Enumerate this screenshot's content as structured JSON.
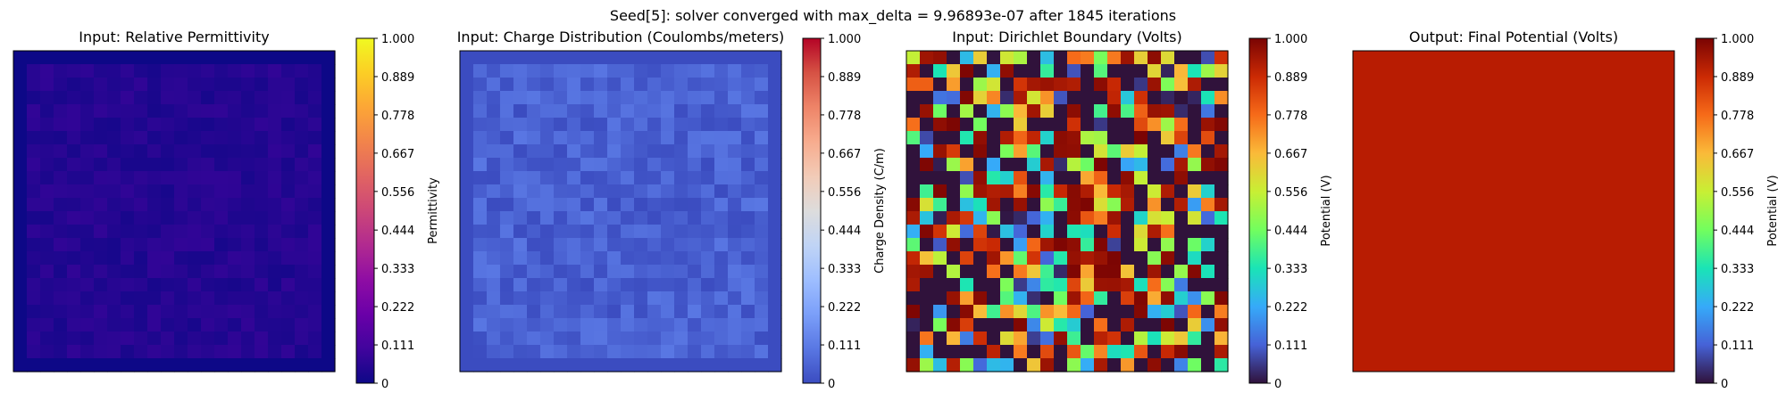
{
  "figure": {
    "suptitle": "Seed[5]: solver converged with max_delta = 9.96893e-07 after 1845 iterations"
  },
  "chart_data": [
    {
      "type": "heatmap",
      "title": "Input: Relative Permittivity",
      "colormap": "plasma",
      "grid": "24x24 cells, uniform border of value 0.0",
      "value_range_shown": [
        0.02,
        0.07
      ],
      "colorbar": {
        "label": "Permittivity",
        "ticks": [
          "0",
          "0.111",
          "0.222",
          "0.333",
          "0.444",
          "0.556",
          "0.667",
          "0.778",
          "0.889",
          "1.000"
        ],
        "range": [
          0,
          1
        ]
      }
    },
    {
      "type": "heatmap",
      "title": "Input: Charge Distribution (Coulombs/meters)",
      "colormap": "coolwarm",
      "grid": "24x24 cells, uniform border of value 0.0",
      "value_range_shown": [
        0.0,
        0.1
      ],
      "colorbar": {
        "label": "Charge Density (C/m)",
        "ticks": [
          "0",
          "0.111",
          "0.222",
          "0.333",
          "0.444",
          "0.556",
          "0.667",
          "0.778",
          "0.889",
          "1.000"
        ],
        "range": [
          0,
          1
        ]
      }
    },
    {
      "type": "heatmap",
      "title": "Input: Dirichlet Boundary (Volts)",
      "colormap": "turbo",
      "grid": "24x24 cells, random values 0 to 1",
      "value_range_shown": [
        0,
        1
      ],
      "colorbar": {
        "label": "Potential (V)",
        "ticks": [
          "0",
          "0.111",
          "0.222",
          "0.333",
          "0.444",
          "0.556",
          "0.667",
          "0.778",
          "0.889",
          "1.000"
        ],
        "range": [
          0,
          1
        ]
      }
    },
    {
      "type": "heatmap",
      "title": "Output: Final Potential (Volts)",
      "colormap": "turbo",
      "grid": "uniform field",
      "uniform_value": 0.92,
      "colorbar": {
        "label": "Potential (V)",
        "ticks": [
          "0",
          "0.111",
          "0.222",
          "0.333",
          "0.444",
          "0.556",
          "0.667",
          "0.778",
          "0.889",
          "1.000"
        ],
        "range": [
          0,
          1
        ]
      }
    }
  ],
  "colors": {
    "output_field": "#b81c02",
    "axes_frame": "#000000"
  }
}
